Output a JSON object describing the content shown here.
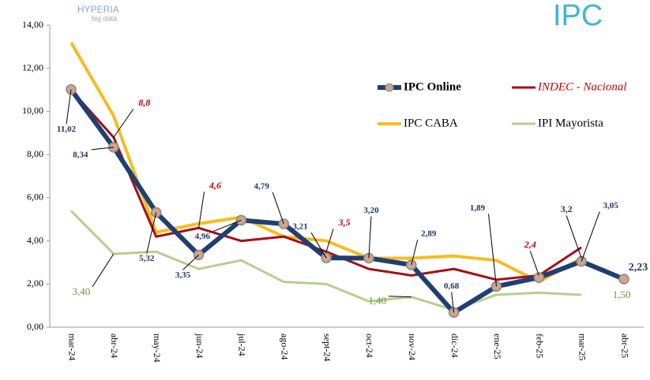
{
  "chart_data": {
    "type": "line",
    "brand": "HYPERIA",
    "brand_sub": "big data",
    "logo": "IPC",
    "categories": [
      "mar-24",
      "abr-24",
      "may-24",
      "jun-24",
      "jul-24",
      "ago-24",
      "sept-24",
      "oct-24",
      "nov-24",
      "dic-24",
      "ene-25",
      "feb-25",
      "mar-25",
      "abr-25"
    ],
    "ylim": [
      0,
      14
    ],
    "yticks": [
      {
        "value": 0,
        "label": "0,00"
      },
      {
        "value": 2,
        "label": "2,00"
      },
      {
        "value": 4,
        "label": "4,00"
      },
      {
        "value": 6,
        "label": "6,00"
      },
      {
        "value": 8,
        "label": "8,00"
      },
      {
        "value": 10,
        "label": "10,00"
      },
      {
        "value": 12,
        "label": "12,00"
      },
      {
        "value": 14,
        "label": "14,00"
      }
    ],
    "series": [
      {
        "name": "IPC Online",
        "color": "#1f3f73",
        "values": [
          11.02,
          8.34,
          5.32,
          3.35,
          4.96,
          4.79,
          3.21,
          3.2,
          2.89,
          0.68,
          1.89,
          2.3,
          3.05,
          2.23
        ],
        "value_labels": [
          "11,02",
          "8,34",
          "5,32",
          "3,35",
          "4,96",
          "4,79",
          "3,21",
          "3,20",
          "2,89",
          "0,68",
          "1,89",
          null,
          "3,05",
          "2,23"
        ]
      },
      {
        "name": "INDEC - Nacional",
        "color": "#a50f15",
        "values": [
          11.0,
          8.8,
          4.2,
          4.6,
          4.0,
          4.2,
          3.5,
          2.7,
          2.4,
          2.7,
          2.2,
          2.4,
          3.7,
          null
        ],
        "value_labels": [
          null,
          "8,8",
          null,
          "4,6",
          null,
          null,
          "3,5",
          null,
          null,
          null,
          null,
          "2,4",
          null,
          null
        ]
      },
      {
        "name": "IPC CABA",
        "color": "#f5bd1f",
        "values": [
          13.2,
          9.8,
          4.4,
          4.8,
          5.1,
          4.2,
          4.0,
          3.2,
          3.2,
          3.3,
          3.1,
          2.1,
          3.2,
          null
        ],
        "value_labels": [
          null,
          null,
          null,
          null,
          null,
          null,
          null,
          null,
          null,
          null,
          null,
          null,
          "3,2",
          null
        ]
      },
      {
        "name": "IPI Mayorista",
        "color": "#b5cf8f",
        "values": [
          5.4,
          3.4,
          3.5,
          2.7,
          3.1,
          2.1,
          2.0,
          1.2,
          1.4,
          0.8,
          1.5,
          1.6,
          1.5,
          null
        ],
        "value_labels": [
          null,
          "3,40",
          null,
          null,
          null,
          null,
          null,
          null,
          "1,40",
          null,
          null,
          null,
          "1,50",
          null
        ]
      }
    ]
  }
}
